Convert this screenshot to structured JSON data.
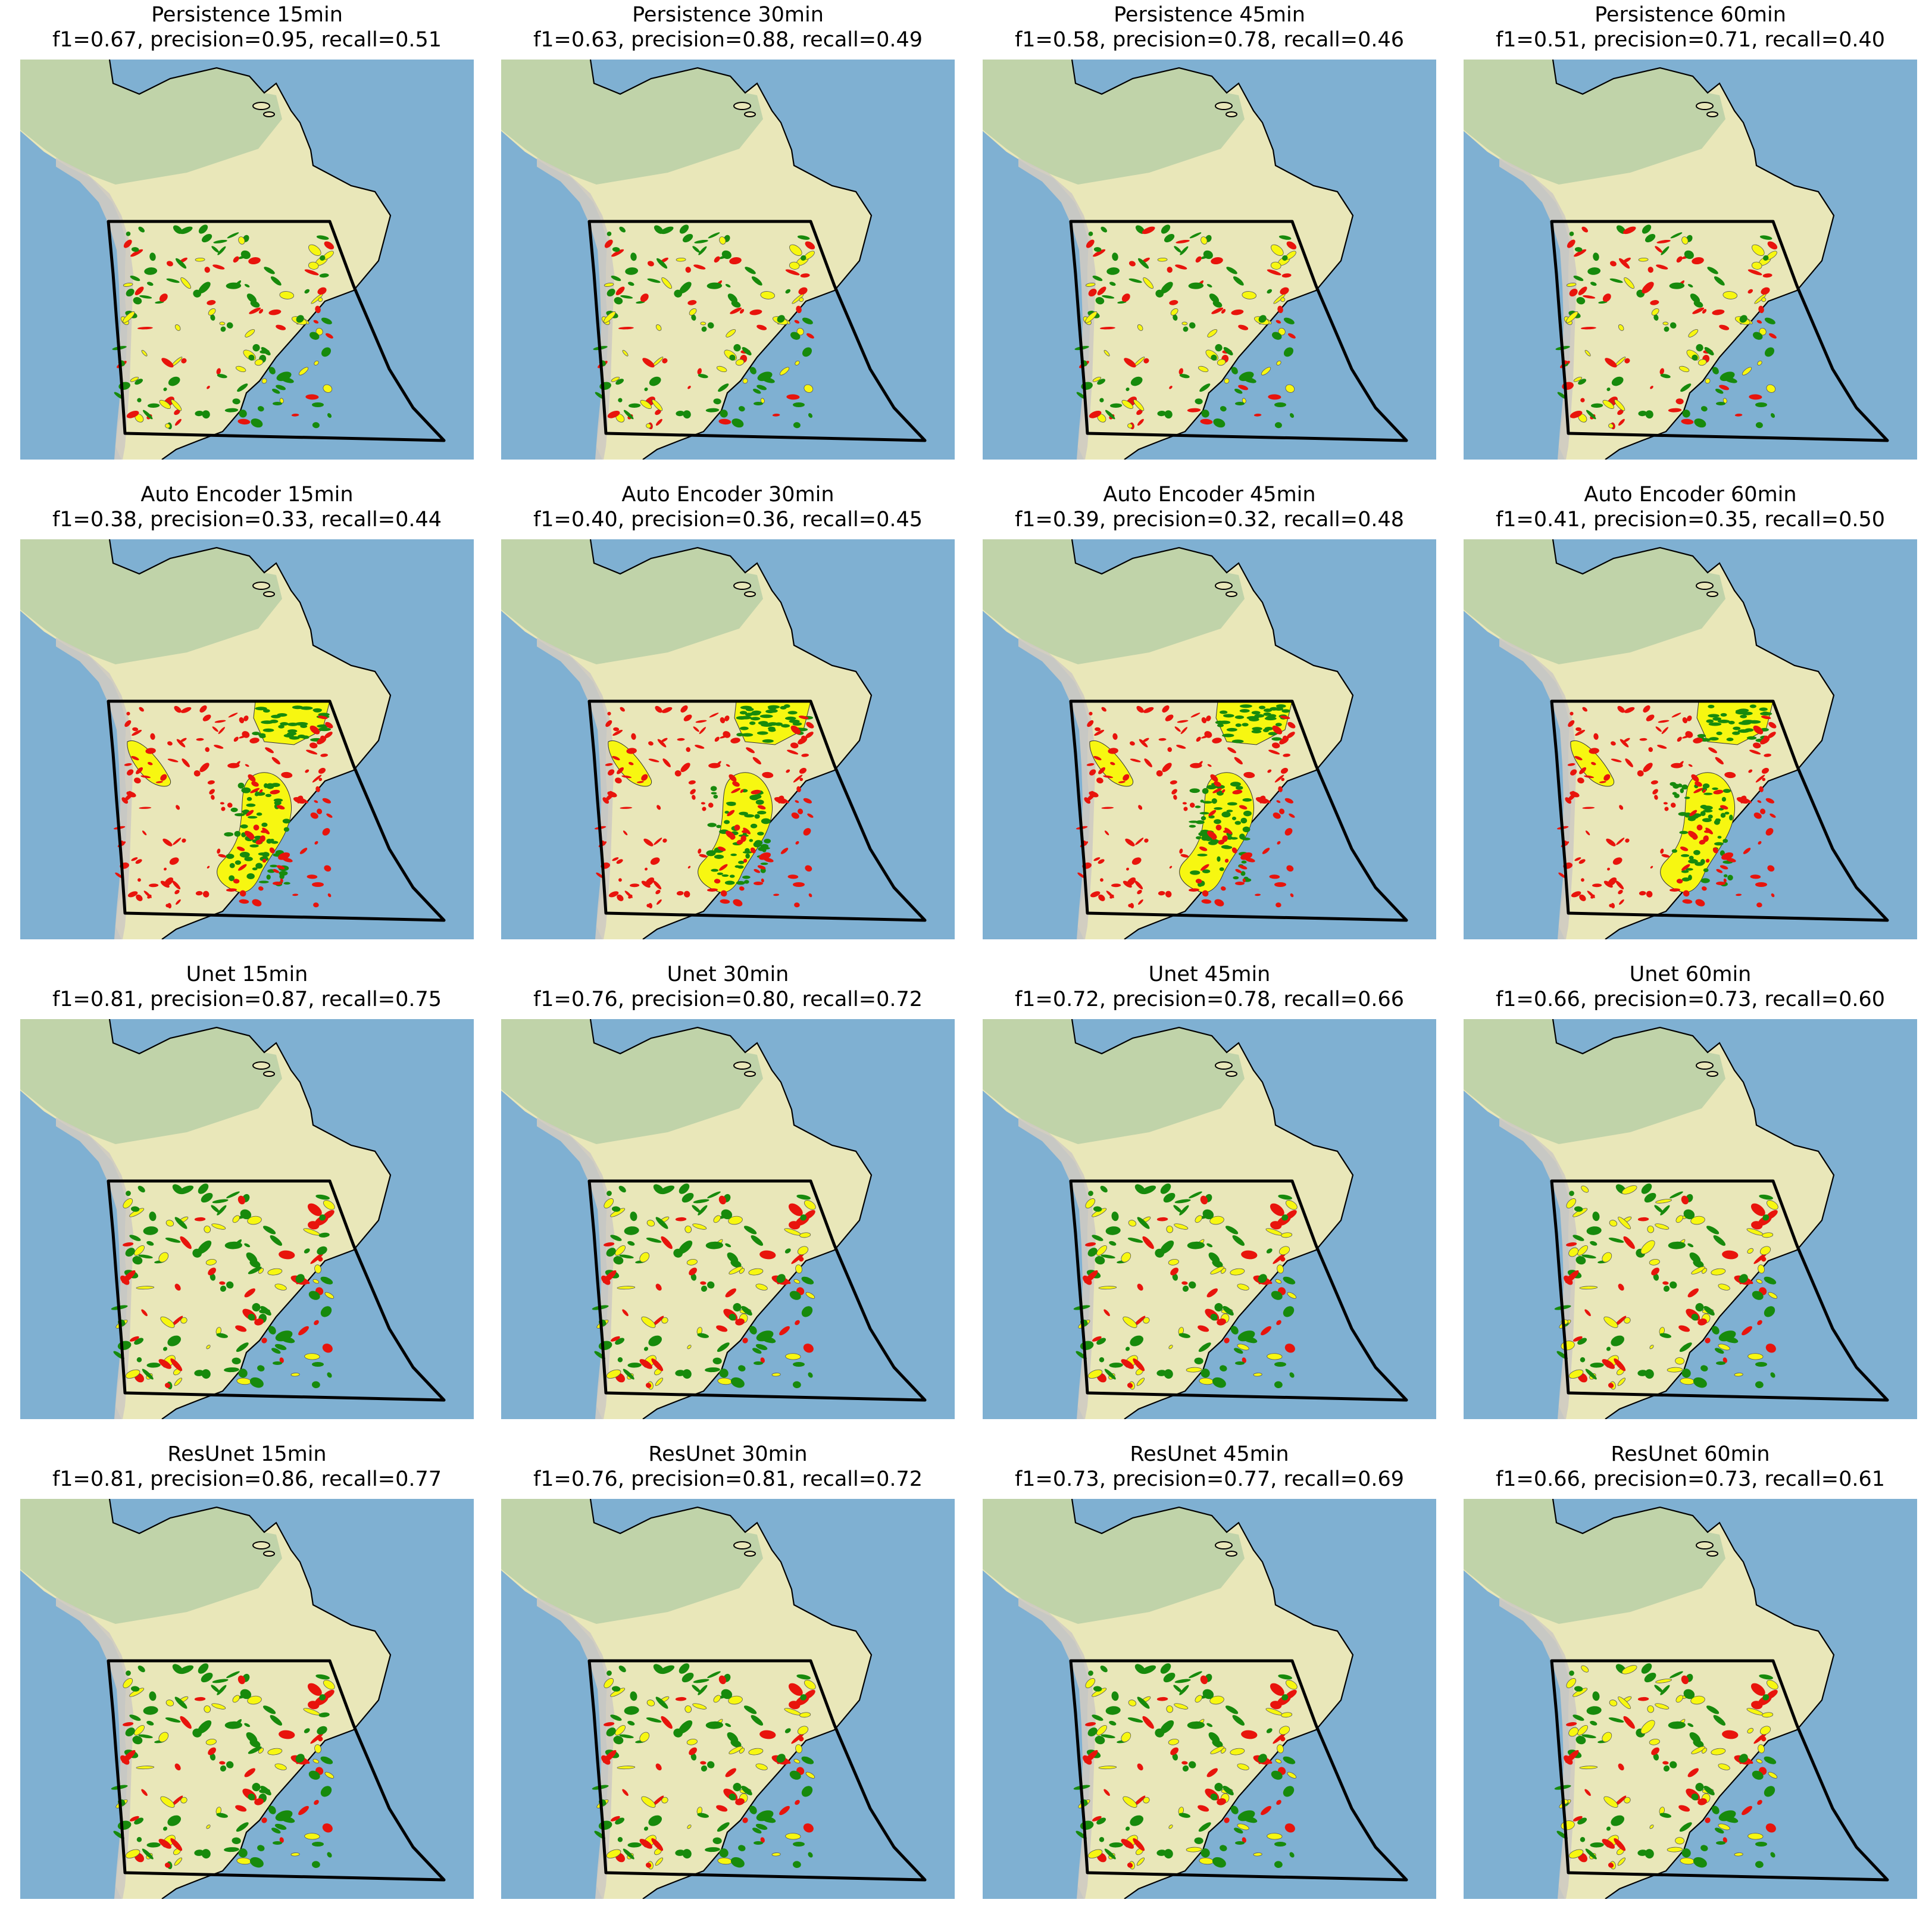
{
  "figure": {
    "panels": [
      {
        "model": "Persistence",
        "lead": "15min",
        "title": "Persistence 15min",
        "metrics": "f1=0.67, precision=0.95, recall=0.51",
        "f1": 0.67,
        "precision": 0.95,
        "recall": 0.51
      },
      {
        "model": "Persistence",
        "lead": "30min",
        "title": "Persistence 30min",
        "metrics": "f1=0.63, precision=0.88, recall=0.49",
        "f1": 0.63,
        "precision": 0.88,
        "recall": 0.49
      },
      {
        "model": "Persistence",
        "lead": "45min",
        "title": "Persistence 45min",
        "metrics": "f1=0.58, precision=0.78, recall=0.46",
        "f1": 0.58,
        "precision": 0.78,
        "recall": 0.46
      },
      {
        "model": "Persistence",
        "lead": "60min",
        "title": "Persistence 60min",
        "metrics": "f1=0.51, precision=0.71, recall=0.40",
        "f1": 0.51,
        "precision": 0.71,
        "recall": 0.4
      },
      {
        "model": "Auto Encoder",
        "lead": "15min",
        "title": "Auto Encoder 15min",
        "metrics": "f1=0.38, precision=0.33, recall=0.44",
        "f1": 0.38,
        "precision": 0.33,
        "recall": 0.44
      },
      {
        "model": "Auto Encoder",
        "lead": "30min",
        "title": "Auto Encoder 30min",
        "metrics": "f1=0.40, precision=0.36, recall=0.45",
        "f1": 0.4,
        "precision": 0.36,
        "recall": 0.45
      },
      {
        "model": "Auto Encoder",
        "lead": "45min",
        "title": "Auto Encoder 45min",
        "metrics": "f1=0.39, precision=0.32, recall=0.48",
        "f1": 0.39,
        "precision": 0.32,
        "recall": 0.48
      },
      {
        "model": "Auto Encoder",
        "lead": "60min",
        "title": "Auto Encoder 60min",
        "metrics": "f1=0.41, precision=0.35, recall=0.50",
        "f1": 0.41,
        "precision": 0.35,
        "recall": 0.5
      },
      {
        "model": "Unet",
        "lead": "15min",
        "title": "Unet 15min",
        "metrics": "f1=0.81, precision=0.87, recall=0.75",
        "f1": 0.81,
        "precision": 0.87,
        "recall": 0.75
      },
      {
        "model": "Unet",
        "lead": "30min",
        "title": "Unet 30min",
        "metrics": "f1=0.76, precision=0.80, recall=0.72",
        "f1": 0.76,
        "precision": 0.8,
        "recall": 0.72
      },
      {
        "model": "Unet",
        "lead": "45min",
        "title": "Unet 45min",
        "metrics": "f1=0.72, precision=0.78, recall=0.66",
        "f1": 0.72,
        "precision": 0.78,
        "recall": 0.66
      },
      {
        "model": "Unet",
        "lead": "60min",
        "title": "Unet 60min",
        "metrics": "f1=0.66, precision=0.73, recall=0.60",
        "f1": 0.66,
        "precision": 0.73,
        "recall": 0.6
      },
      {
        "model": "ResUnet",
        "lead": "15min",
        "title": "ResUnet 15min",
        "metrics": "f1=0.81, precision=0.86, recall=0.77",
        "f1": 0.81,
        "precision": 0.86,
        "recall": 0.77
      },
      {
        "model": "ResUnet",
        "lead": "30min",
        "title": "ResUnet 30min",
        "metrics": "f1=0.76, precision=0.81, recall=0.72",
        "f1": 0.76,
        "precision": 0.81,
        "recall": 0.72
      },
      {
        "model": "ResUnet",
        "lead": "45min",
        "title": "ResUnet 45min",
        "metrics": "f1=0.73, precision=0.77, recall=0.69",
        "f1": 0.73,
        "precision": 0.77,
        "recall": 0.69
      },
      {
        "model": "ResUnet",
        "lead": "60min",
        "title": "ResUnet 60min",
        "metrics": "f1=0.66, precision=0.73, recall=0.61",
        "f1": 0.66,
        "precision": 0.73,
        "recall": 0.61
      }
    ]
  },
  "colors": {
    "ocean": "#7fb0d2",
    "land": "#e9e7b9",
    "forest": "#b9cfa6",
    "andes": "#cfcbc2",
    "domain_outline": "#000000",
    "coastline": "#000000",
    "hit": "#178a0c",
    "miss": "#f7f711",
    "false_alarm": "#e8140c"
  },
  "icons": {
    "map": "south-america-map",
    "domain": "domain-outline"
  }
}
